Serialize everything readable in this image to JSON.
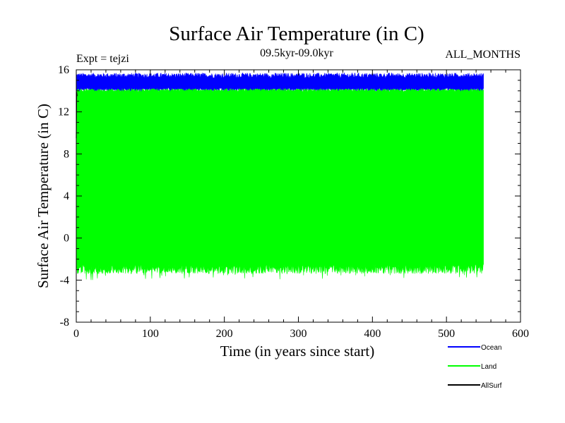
{
  "chart_data": {
    "type": "line",
    "title": "Surface Air Temperature (in C)",
    "subtitle": "09.5kyr-09.0kyr",
    "expt_label": "Expt = tejzi",
    "months_label": "ALL_MONTHS",
    "xlabel": "Time (in years since start)",
    "ylabel": "Surface Air Temperature (in C)",
    "xlim": [
      0,
      600
    ],
    "ylim": [
      -8,
      16
    ],
    "xticks": [
      0,
      100,
      200,
      300,
      400,
      500,
      600
    ],
    "yticks": [
      -8,
      -4,
      0,
      4,
      8,
      12,
      16
    ],
    "x_extent": [
      0,
      550
    ],
    "series": [
      {
        "name": "Ocean",
        "color": "#0000ff",
        "band_range": [
          14.0,
          15.8
        ],
        "typical_low": 14.3,
        "typical_high": 15.4
      },
      {
        "name": "Land",
        "color": "#00ff00",
        "band_range": [
          -4.0,
          14.6
        ],
        "typical_low": -2.5,
        "typical_high": 14.2
      },
      {
        "name": "AllSurf",
        "color": "#000000",
        "band_range": [
          9.5,
          13.9
        ],
        "typical_low": 13.5,
        "typical_high": 13.9
      }
    ]
  }
}
